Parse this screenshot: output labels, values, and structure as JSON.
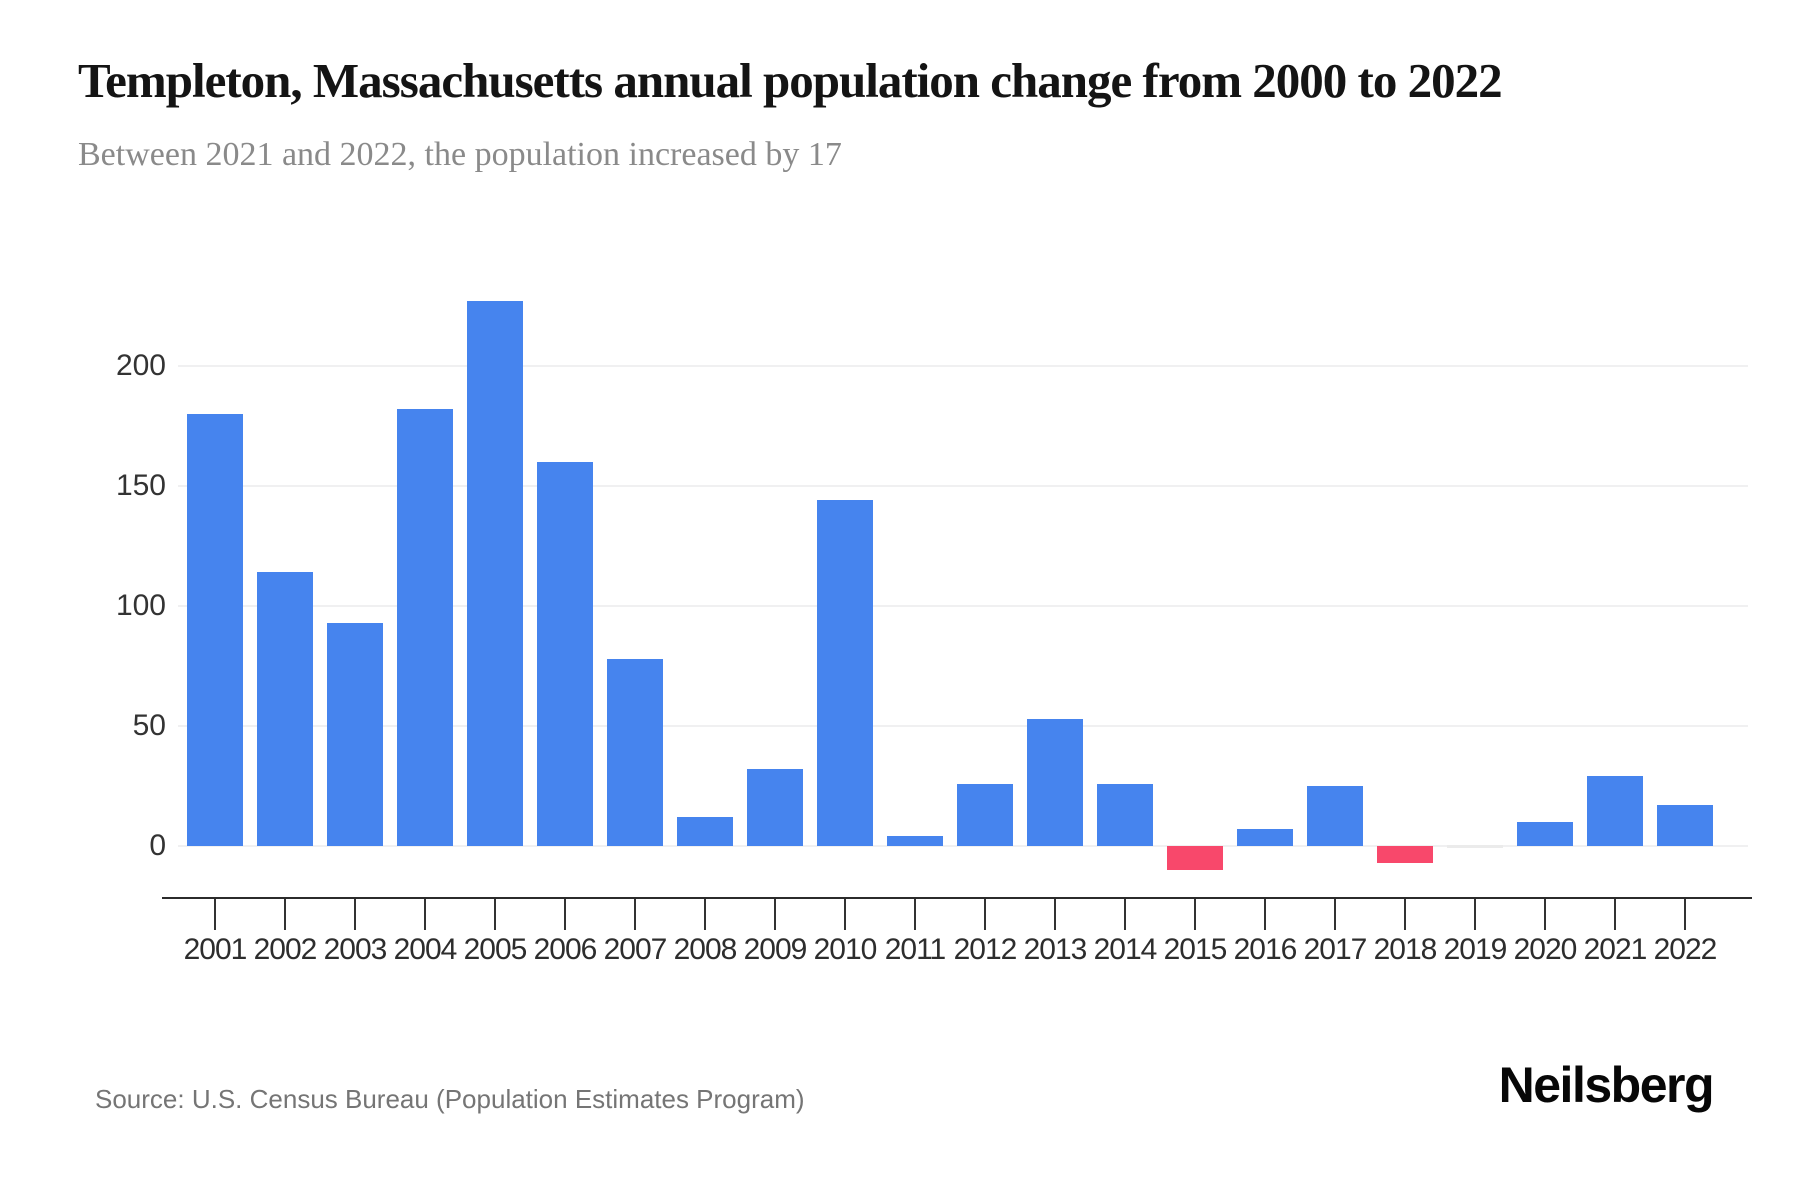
{
  "header": {
    "title": "Templeton, Massachusetts annual population change from 2000 to 2022",
    "subtitle": "Between 2021 and 2022, the population increased by 17"
  },
  "chart_data": {
    "type": "bar",
    "title": "Templeton, Massachusetts annual population change from 2000 to 2022",
    "subtitle": "Between 2021 and 2022, the population increased by 17",
    "categories": [
      "2001",
      "2002",
      "2003",
      "2004",
      "2005",
      "2006",
      "2007",
      "2008",
      "2009",
      "2010",
      "2011",
      "2012",
      "2013",
      "2014",
      "2015",
      "2016",
      "2017",
      "2018",
      "2019",
      "2020",
      "2021",
      "2022"
    ],
    "values": [
      180,
      114,
      93,
      182,
      227,
      160,
      78,
      12,
      32,
      144,
      4,
      26,
      53,
      26,
      -10,
      7,
      25,
      -7,
      0,
      10,
      29,
      17
    ],
    "xlabel": "",
    "ylabel": "",
    "y_ticks": [
      0,
      50,
      100,
      150,
      200
    ],
    "ylim": [
      -25,
      240
    ],
    "grid": true,
    "legend": false,
    "colors": {
      "positive": "#4684EE",
      "negative": "#F8486B",
      "zero": "#ebebeb"
    }
  },
  "footer": {
    "source": "Source: U.S. Census Bureau (Population Estimates Program)",
    "logo_text": "Neilsberg"
  }
}
